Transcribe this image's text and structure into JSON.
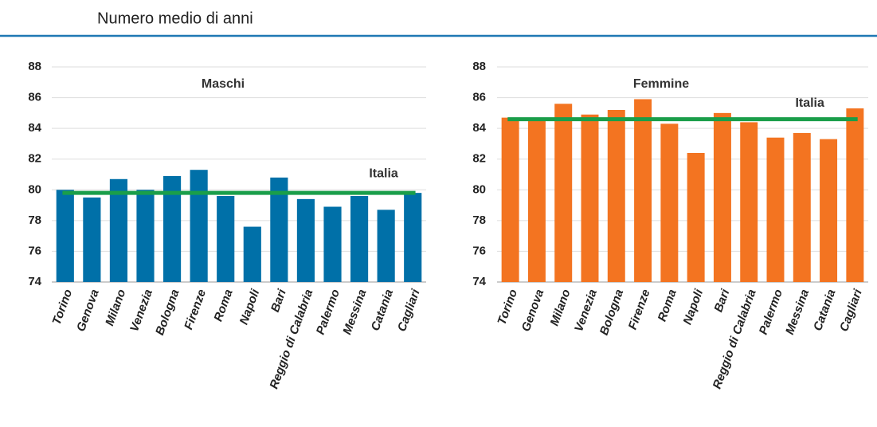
{
  "header": {
    "subtitle": "Numero medio di anni"
  },
  "chart_data": [
    {
      "type": "bar",
      "categories": [
        "Torino",
        "Genova",
        "Milano",
        "Venezia",
        "Bologna",
        "Firenze",
        "Roma",
        "Napoli",
        "Bari",
        "Reggio di Calabria",
        "Palermo",
        "Messina",
        "Catania",
        "Cagliari"
      ],
      "series": [
        {
          "name": "Maschi",
          "color": "#0070a8",
          "values": [
            80.0,
            79.5,
            80.7,
            80.0,
            80.9,
            81.3,
            79.6,
            77.6,
            80.8,
            79.4,
            78.9,
            79.6,
            78.7,
            79.8
          ]
        }
      ],
      "reference": {
        "name": "Italia",
        "value": 79.8,
        "color": "#1a9e4a"
      },
      "ylim": [
        74,
        88
      ],
      "yticks": [
        74,
        76,
        78,
        80,
        82,
        84,
        86,
        88
      ],
      "grid": true
    },
    {
      "type": "bar",
      "categories": [
        "Torino",
        "Genova",
        "Milano",
        "Venezia",
        "Bologna",
        "Firenze",
        "Roma",
        "Napoli",
        "Bari",
        "Reggio di Calabria",
        "Palermo",
        "Messina",
        "Catania",
        "Cagliari"
      ],
      "series": [
        {
          "name": "Femmine",
          "color": "#f37421",
          "values": [
            84.7,
            84.6,
            85.6,
            84.9,
            85.2,
            85.9,
            84.3,
            82.4,
            85.0,
            84.4,
            83.4,
            83.7,
            83.3,
            85.3
          ]
        }
      ],
      "reference": {
        "name": "Italia",
        "value": 84.6,
        "color": "#1a9e4a"
      },
      "ylim": [
        74,
        88
      ],
      "yticks": [
        74,
        76,
        78,
        80,
        82,
        84,
        86,
        88
      ],
      "grid": true
    }
  ]
}
